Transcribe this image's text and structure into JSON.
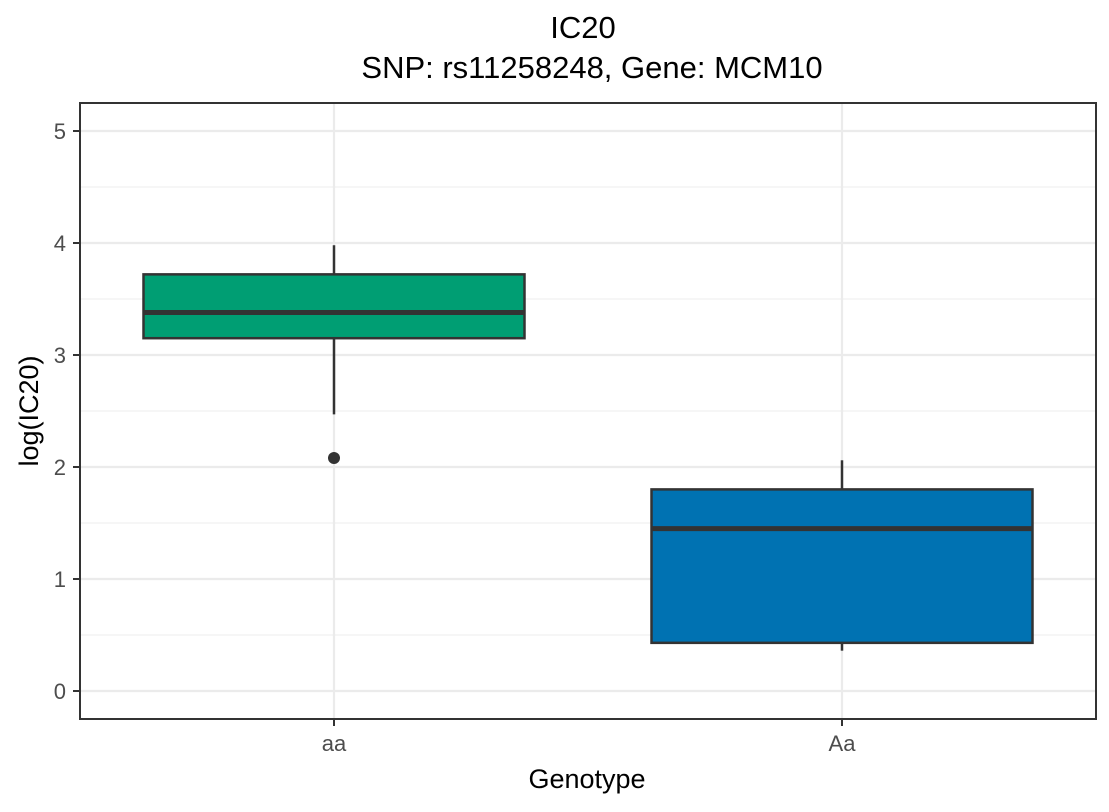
{
  "chart_data": {
    "type": "box",
    "title": "IC20",
    "subtitle": "SNP: rs11258248, Gene: MCM10",
    "xlabel": "Genotype",
    "ylabel": "log(IC20)",
    "categories": [
      "aa",
      "Aa"
    ],
    "ylim": [
      -0.25,
      5.25
    ],
    "y_ticks": [
      0,
      1,
      2,
      3,
      4,
      5
    ],
    "grid": true,
    "boxes": [
      {
        "category": "aa",
        "whisker_low": 2.47,
        "q1": 3.15,
        "median": 3.38,
        "q3": 3.72,
        "whisker_high": 3.98,
        "outliers": [
          2.08
        ],
        "color": "#009E73"
      },
      {
        "category": "Aa",
        "whisker_low": 0.36,
        "q1": 0.43,
        "median": 1.45,
        "q3": 1.8,
        "whisker_high": 2.06,
        "outliers": [],
        "color": "#0072B2"
      }
    ]
  }
}
